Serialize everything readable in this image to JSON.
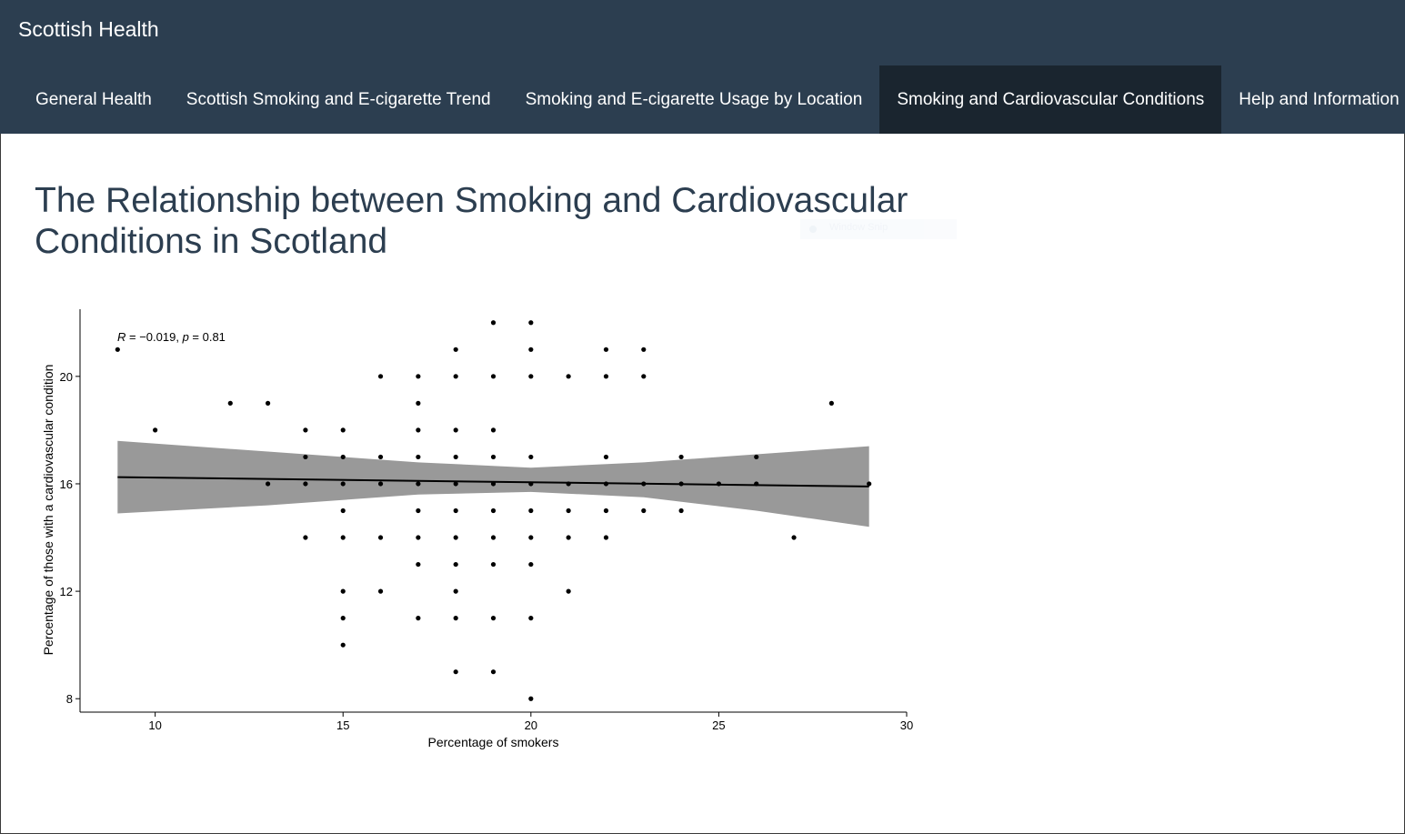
{
  "app": {
    "title": "Scottish Health"
  },
  "nav": {
    "tabs": [
      {
        "label": "General Health",
        "active": false
      },
      {
        "label": "Scottish Smoking and E-cigarette Trend",
        "active": false
      },
      {
        "label": "Smoking and E-cigarette Usage by Location",
        "active": false
      },
      {
        "label": "Smoking and Cardiovascular Conditions",
        "active": true
      },
      {
        "label": "Help and Information",
        "active": false
      }
    ]
  },
  "main": {
    "title": "The Relationship between Smoking and Cardiovascular Conditions in Scotland",
    "overlay_text": "Window Snip"
  },
  "colors": {
    "navbar": "#2c3e50",
    "navbar_active": "#1a252f",
    "title": "#2c3e50",
    "ribbon": "#999999"
  },
  "chart_data": {
    "type": "scatter",
    "xlabel": "Percentage of smokers",
    "ylabel": "Percentage of those with a cardiovascular condition",
    "annotation": {
      "R_label": "R",
      "R_text": " = −0.019, ",
      "p_label": "p",
      "p_text": " = 0.81"
    },
    "xlim": [
      8,
      30
    ],
    "ylim": [
      7.5,
      22.5
    ],
    "xticks": [
      10,
      15,
      20,
      25,
      30
    ],
    "yticks": [
      8,
      12,
      16,
      20
    ],
    "grid": false,
    "points": [
      [
        9,
        21
      ],
      [
        10,
        18
      ],
      [
        12,
        19
      ],
      [
        13,
        19
      ],
      [
        13,
        16
      ],
      [
        14,
        18
      ],
      [
        14,
        17
      ],
      [
        14,
        16
      ],
      [
        14,
        14
      ],
      [
        15,
        18
      ],
      [
        15,
        17
      ],
      [
        15,
        16
      ],
      [
        15,
        15
      ],
      [
        15,
        14
      ],
      [
        15,
        12
      ],
      [
        15,
        11
      ],
      [
        15,
        10
      ],
      [
        16,
        20
      ],
      [
        16,
        17
      ],
      [
        16,
        16
      ],
      [
        16,
        14
      ],
      [
        16,
        12
      ],
      [
        17,
        20
      ],
      [
        17,
        19
      ],
      [
        17,
        18
      ],
      [
        17,
        17
      ],
      [
        17,
        16
      ],
      [
        17,
        15
      ],
      [
        17,
        14
      ],
      [
        17,
        13
      ],
      [
        17,
        11
      ],
      [
        18,
        21
      ],
      [
        18,
        20
      ],
      [
        18,
        18
      ],
      [
        18,
        17
      ],
      [
        18,
        16
      ],
      [
        18,
        15
      ],
      [
        18,
        14
      ],
      [
        18,
        13
      ],
      [
        18,
        12
      ],
      [
        18,
        11
      ],
      [
        18,
        9
      ],
      [
        19,
        22
      ],
      [
        19,
        20
      ],
      [
        19,
        18
      ],
      [
        19,
        17
      ],
      [
        19,
        16
      ],
      [
        19,
        15
      ],
      [
        19,
        14
      ],
      [
        19,
        13
      ],
      [
        19,
        11
      ],
      [
        19,
        9
      ],
      [
        20,
        22
      ],
      [
        20,
        21
      ],
      [
        20,
        20
      ],
      [
        20,
        17
      ],
      [
        20,
        16
      ],
      [
        20,
        15
      ],
      [
        20,
        14
      ],
      [
        20,
        13
      ],
      [
        20,
        11
      ],
      [
        20,
        8
      ],
      [
        21,
        20
      ],
      [
        21,
        16
      ],
      [
        21,
        15
      ],
      [
        21,
        14
      ],
      [
        21,
        12
      ],
      [
        22,
        21
      ],
      [
        22,
        20
      ],
      [
        22,
        17
      ],
      [
        22,
        16
      ],
      [
        22,
        15
      ],
      [
        22,
        14
      ],
      [
        23,
        21
      ],
      [
        23,
        20
      ],
      [
        23,
        16
      ],
      [
        23,
        15
      ],
      [
        24,
        17
      ],
      [
        24,
        16
      ],
      [
        24,
        15
      ],
      [
        25,
        16
      ],
      [
        26,
        17
      ],
      [
        26,
        16
      ],
      [
        27,
        14
      ],
      [
        28,
        19
      ],
      [
        29,
        16
      ]
    ],
    "fit": {
      "x": [
        9,
        29
      ],
      "y": [
        16.25,
        15.9
      ]
    },
    "ci": {
      "x": [
        9,
        13,
        17,
        20,
        23,
        26,
        29
      ],
      "lower": [
        14.9,
        15.2,
        15.6,
        15.7,
        15.5,
        15.0,
        14.4
      ],
      "upper": [
        17.6,
        17.2,
        16.8,
        16.6,
        16.8,
        17.1,
        17.4
      ]
    }
  }
}
